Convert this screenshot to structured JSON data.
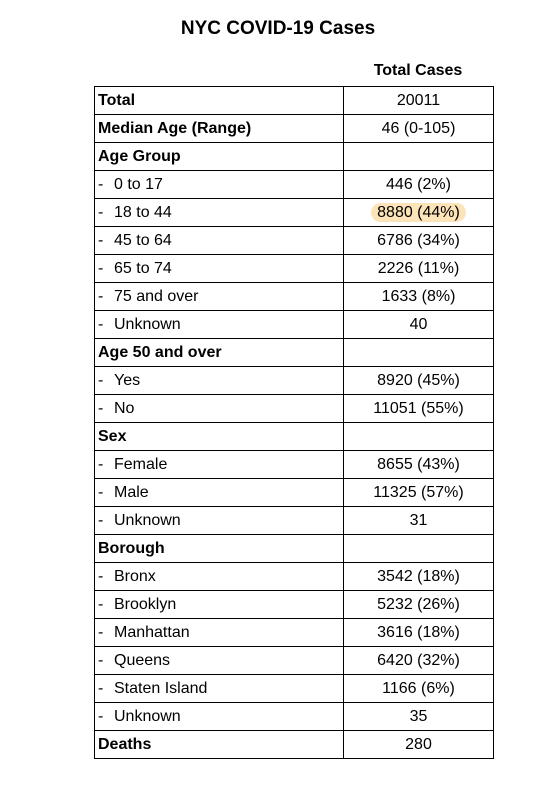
{
  "title": "NYC COVID-19 Cases",
  "column_header": "Total Cases",
  "rows": [
    {
      "label": "Total",
      "value": "20011",
      "bold": true
    },
    {
      "label": "Median Age (Range)",
      "value": "46 (0-105)",
      "bold": true
    },
    {
      "label": "Age Group",
      "value": "",
      "bold": true
    },
    {
      "label": "0 to 17",
      "value": "446 (2%)",
      "sub": true
    },
    {
      "label": "18 to 44",
      "value": "8880 (44%)",
      "sub": true,
      "highlight": true
    },
    {
      "label": "45 to 64",
      "value": "6786 (34%)",
      "sub": true
    },
    {
      "label": "65 to 74",
      "value": "2226 (11%)",
      "sub": true
    },
    {
      "label": "75 and over",
      "value": "1633 (8%)",
      "sub": true
    },
    {
      "label": "Unknown",
      "value": "40",
      "sub": true
    },
    {
      "label": "Age 50 and over",
      "value": "",
      "bold": true
    },
    {
      "label": "Yes",
      "value": "8920 (45%)",
      "sub": true
    },
    {
      "label": "No",
      "value": "11051 (55%)",
      "sub": true
    },
    {
      "label": "Sex",
      "value": "",
      "bold": true
    },
    {
      "label": "Female",
      "value": "8655 (43%)",
      "sub": true
    },
    {
      "label": "Male",
      "value": "11325 (57%)",
      "sub": true
    },
    {
      "label": "Unknown",
      "value": "31",
      "sub": true
    },
    {
      "label": "Borough",
      "value": "",
      "bold": true
    },
    {
      "label": "Bronx",
      "value": "3542 (18%)",
      "sub": true
    },
    {
      "label": "Brooklyn",
      "value": "5232 (26%)",
      "sub": true
    },
    {
      "label": "Manhattan",
      "value": "3616 (18%)",
      "sub": true
    },
    {
      "label": "Queens",
      "value": "6420 (32%)",
      "sub": true
    },
    {
      "label": "Staten Island",
      "value": "1166 (6%)",
      "sub": true
    },
    {
      "label": "Unknown",
      "value": "35",
      "sub": true
    },
    {
      "label": "Deaths",
      "value": "280",
      "bold": true
    }
  ],
  "sub_prefix": "-",
  "highlight_color": "#fde3b8"
}
